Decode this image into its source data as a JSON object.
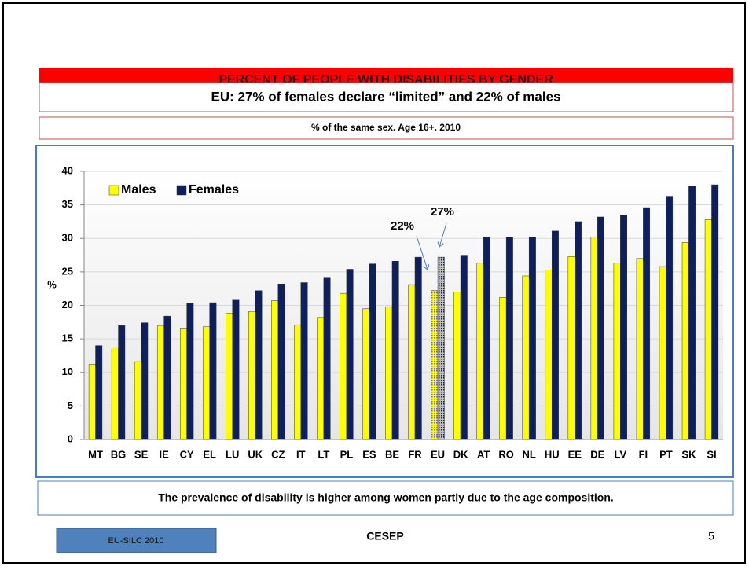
{
  "chart_data": {
    "type": "bar",
    "title": "PERCENT OF PEOPLE WITH DISABILITIES BY GENDER",
    "subtitle": "EU: 27% of females declare “limited” and 22% of males",
    "note": "% of the same sex. Age 16+. 2010",
    "y_label": "%",
    "categories": [
      "MT",
      "BG",
      "SE",
      "IE",
      "CY",
      "EL",
      "LU",
      "UK",
      "CZ",
      "IT",
      "LT",
      "PL",
      "ES",
      "BE",
      "FR",
      "EU",
      "DK",
      "AT",
      "RO",
      "NL",
      "HU",
      "EE",
      "DE",
      "LV",
      "FI",
      "PT",
      "SK",
      "SI"
    ],
    "series": [
      {
        "name": "Males",
        "color": "#ffff00",
        "values": [
          11.2,
          13.7,
          11.6,
          17.0,
          16.6,
          16.8,
          18.8,
          19.1,
          20.7,
          17.1,
          18.2,
          21.8,
          19.5,
          19.8,
          23.1,
          22.2,
          22.0,
          26.3,
          21.2,
          24.4,
          25.3,
          27.3,
          30.2,
          26.3,
          27.0,
          25.8,
          29.4,
          32.8
        ]
      },
      {
        "name": "Females",
        "color": "#0d1f5c",
        "values": [
          14.0,
          17.0,
          17.4,
          18.4,
          20.3,
          20.4,
          20.9,
          22.2,
          23.2,
          23.4,
          24.2,
          25.4,
          26.2,
          26.6,
          27.2,
          27.2,
          27.5,
          30.2,
          30.2,
          30.2,
          31.1,
          32.5,
          33.2,
          33.5,
          34.6,
          36.3,
          37.8,
          38.0
        ]
      }
    ],
    "highlight": "EU",
    "annotations": [
      "22%",
      "27%"
    ],
    "ylim": [
      0,
      40
    ],
    "yticks": [
      0,
      5,
      10,
      15,
      20,
      25,
      30,
      35,
      40
    ],
    "grid": true,
    "legend": "top-left",
    "footnote": "The prevalence of disability is higher among women partly due to the age composition."
  },
  "footer": {
    "source": "EU-SILC 2010",
    "center": "CESEP",
    "page": "5"
  }
}
